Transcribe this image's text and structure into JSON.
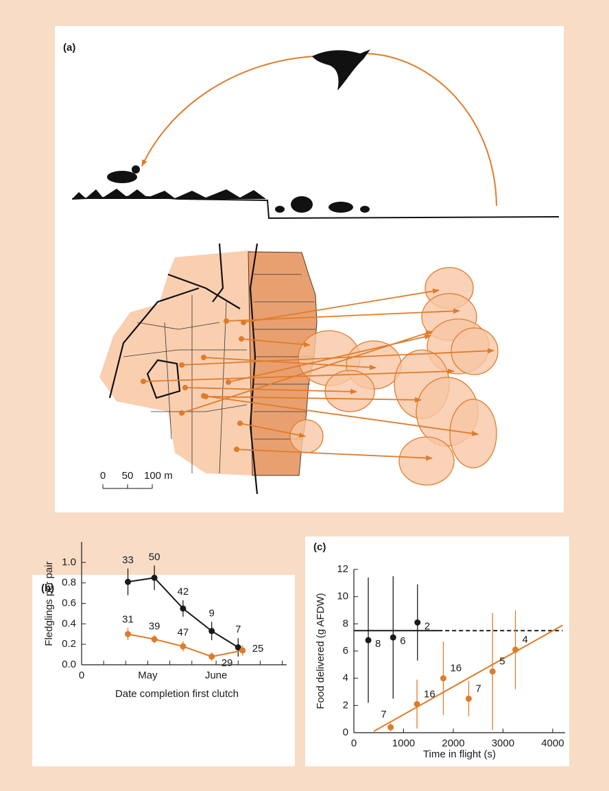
{
  "figure_a": {
    "panel_label": "(a)",
    "scale_bar": [
      "0",
      "50",
      "100 m"
    ]
  },
  "chart_data": [
    {
      "type": "line",
      "panel_label": "(b)",
      "x_label": "Date completion first clutch",
      "y_label": "Fledglings per pair",
      "xlim": [
        0,
        93
      ],
      "xticks": [
        0,
        {
          "value": 30,
          "label": "May"
        },
        {
          "value": 61,
          "label": "June"
        }
      ],
      "x_minor_ticks": [
        10,
        20,
        40,
        50,
        71,
        81,
        91
      ],
      "ylim": [
        0,
        1.2
      ],
      "yticks": [
        {
          "value": 0,
          "label": "0.0"
        },
        0.2,
        0.4,
        0.6,
        0.8,
        {
          "value": 1,
          "label": "1.0"
        }
      ],
      "series": [
        {
          "color": "#1a1a1a",
          "x": [
            21,
            33,
            46,
            59,
            71
          ],
          "values": [
            0.81,
            0.85,
            0.55,
            0.33,
            0.17
          ],
          "errors": [
            0.13,
            0.12,
            0.08,
            0.09,
            0.09
          ],
          "n": [
            33,
            50,
            42,
            9,
            7
          ]
        },
        {
          "color": "#e07b2a",
          "x": [
            21,
            33,
            46,
            59,
            73
          ],
          "values": [
            0.3,
            0.25,
            0.18,
            0.08,
            0.14
          ],
          "errors": [
            0.06,
            0.04,
            0.05,
            0.04,
            0.05
          ],
          "n": [
            31,
            39,
            47,
            29,
            25
          ]
        }
      ]
    },
    {
      "type": "scatter",
      "panel_label": "(c)",
      "x_label": "Time in flight (s)",
      "y_label": "Food delivered (g AFDW)",
      "xlim": [
        0,
        4250
      ],
      "xticks": [
        0,
        1000,
        2000,
        3000,
        4000
      ],
      "ylim": [
        0,
        12
      ],
      "yticks": [
        0,
        2,
        4,
        6,
        8,
        10,
        12
      ],
      "series": [
        {
          "color": "#1a1a1a",
          "x": [
            290,
            790,
            1280
          ],
          "values": [
            6.8,
            7.0,
            8.1
          ],
          "errors": [
            4.6,
            4.5,
            2.8
          ],
          "n": [
            8,
            6,
            2
          ]
        },
        {
          "color": "#e07b2a",
          "x": [
            740,
            1270,
            1800,
            2310,
            2790,
            3250
          ],
          "values": [
            0.4,
            2.1,
            4.0,
            2.5,
            4.5,
            6.1
          ],
          "errors": [
            0.3,
            1.8,
            2.7,
            1.3,
            4.3,
            2.9
          ],
          "n": [
            7,
            16,
            16,
            7,
            5,
            4
          ]
        }
      ],
      "lines": [
        {
          "color": "#1a1a1a",
          "dash": false,
          "x": [
            0,
            1700
          ],
          "y": [
            7.5,
            7.5
          ]
        },
        {
          "color": "#1a1a1a",
          "dash": true,
          "x": [
            1700,
            4200
          ],
          "y": [
            7.5,
            7.5
          ]
        },
        {
          "color": "#e07b2a",
          "dash": false,
          "x": [
            400,
            4200
          ],
          "y": [
            0.1,
            7.9
          ]
        }
      ]
    }
  ]
}
